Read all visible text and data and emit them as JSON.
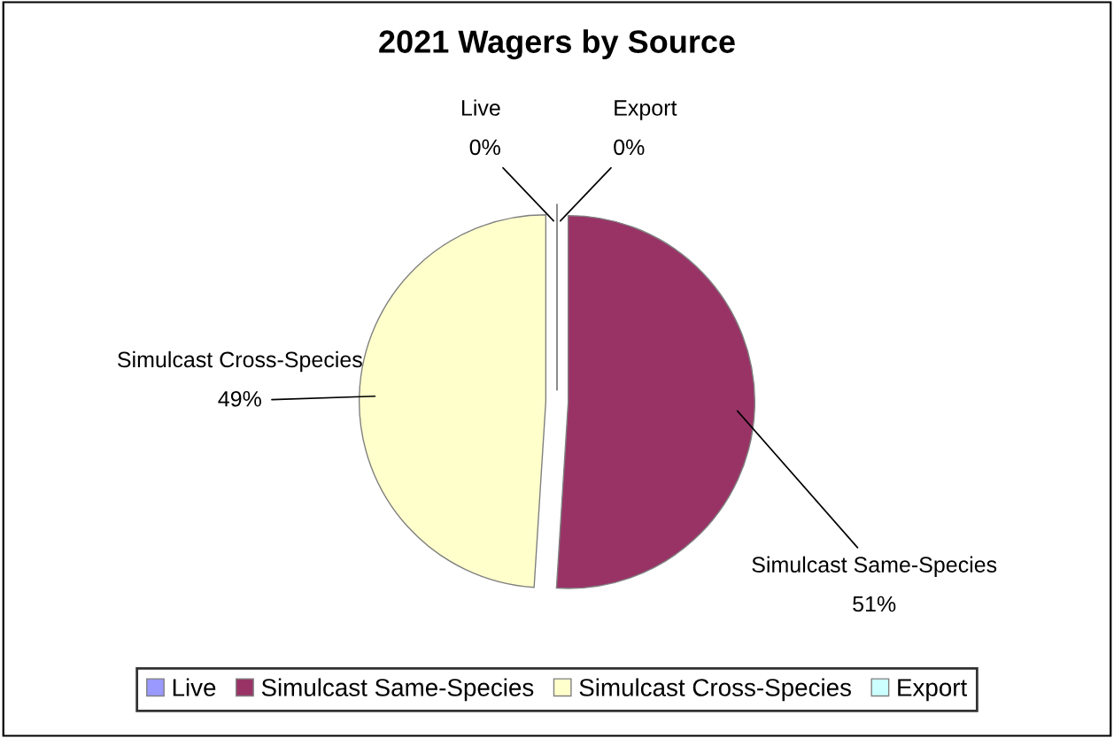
{
  "chart_data": {
    "type": "pie",
    "title": "2021 Wagers by Source",
    "categories": [
      "Live",
      "Simulcast Same-Species",
      "Simulcast Cross-Species",
      "Export"
    ],
    "values": [
      0,
      51,
      49,
      0
    ],
    "value_labels": [
      "0%",
      "51%",
      "49%",
      "0%"
    ],
    "colors": [
      "#9999ff",
      "#993366",
      "#ffffcc",
      "#ccffff"
    ],
    "legend": "bottom"
  }
}
